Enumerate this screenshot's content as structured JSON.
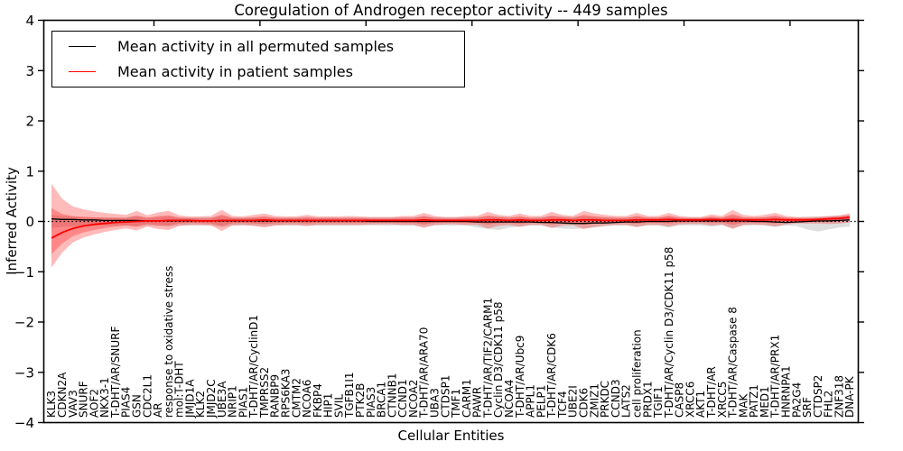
{
  "chart_data": {
    "type": "line",
    "title": "Coregulation of Androgen receptor activity -- 449 samples",
    "xlabel": "Cellular Entities",
    "ylabel": "Inferred Activity",
    "ylim": [
      -4,
      4
    ],
    "yticks": [
      4,
      3,
      2,
      1,
      0,
      -1,
      -2,
      -3,
      -4
    ],
    "grid": false,
    "legend_position": "upper left",
    "colors": {
      "permuted_line": "#000000",
      "patient_line": "#ff0000",
      "permuted_band": "#999999",
      "patient_band": "#ff0000",
      "frame": "#000000"
    },
    "zero_line": {
      "value": 0,
      "style": "dotted",
      "color": "#000000"
    },
    "categories": [
      "KLK3",
      "CDKN2A",
      "VAV3",
      "SNURF",
      "AOF2",
      "NKX3-1",
      "T-DHT/AR/SNURF",
      "PIAS4",
      "GSN",
      "CDC2L1",
      "AR",
      "response to oxidative stress",
      "mol:T-DHT",
      "JMJD1A",
      "KLK2",
      "JMJD2C",
      "UBE3A",
      "NRIP1",
      "PIAS1",
      "T-DHT/AR/CyclinD1",
      "TMPRSS2",
      "RANBP9",
      "RPS6KA3",
      "CMTM2",
      "NCOA6",
      "FKBP4",
      "HIP1",
      "SVIL",
      "TGFB1I1",
      "PTK2B",
      "PIAS3",
      "BRCA1",
      "CTNNB1",
      "CCND1",
      "NCOA2",
      "T-DHT/AR/ARA70",
      "UBA3",
      "CTDSP1",
      "TMF1",
      "CARM1",
      "PAWR",
      "T-DHT/AR/TIF2/CARM1",
      "Cyclin D3/CDK11 p58",
      "NCOA4",
      "T-DHT/AR/Ubc9",
      "APPL1",
      "PELP1",
      "T-DHT/AR/CDK6",
      "TCF4",
      "UBE2I",
      "CDK6",
      "ZMIZ1",
      "PRKDC",
      "CCND3",
      "LATS2",
      "cell proliferation",
      "PRDX1",
      "TGIF1",
      "T-DHT/AR/Cyclin D3/CDK11 p58",
      "CASP8",
      "XRCC6",
      "AKT1",
      "T-DHT/AR",
      "XRCC5",
      "T-DHT/AR/Caspase 8",
      "MAK",
      "PATZ1",
      "MED1",
      "T-DHT/AR/PRX1",
      "HNRNPA1",
      "PA2G4",
      "SRF",
      "CTDSP2",
      "FHL2",
      "ZNF318",
      "DNA-PK"
    ],
    "series": [
      {
        "name": "Mean activity in all permuted samples",
        "color": "#000000",
        "values": [
          0.05,
          0.04,
          0.04,
          0.03,
          0.03,
          0.02,
          0.02,
          0.02,
          0.02,
          0.01,
          0.01,
          0.01,
          0.01,
          0.01,
          0.01,
          0.01,
          0.01,
          0.01,
          0.01,
          0.01,
          0.01,
          0.01,
          0.01,
          0.01,
          0.01,
          0.01,
          0.01,
          0.01,
          0.01,
          0.01,
          0.0,
          0.0,
          0.0,
          0.0,
          0.0,
          0.0,
          0.0,
          0.0,
          0.0,
          0.0,
          -0.01,
          -0.01,
          -0.01,
          -0.01,
          -0.01,
          -0.01,
          -0.02,
          -0.02,
          -0.03,
          -0.04,
          -0.04,
          -0.03,
          -0.03,
          -0.02,
          -0.01,
          -0.01,
          0.0,
          0.0,
          0.0,
          0.01,
          0.01,
          0.01,
          0.01,
          0.01,
          0.01,
          0.01,
          0.0,
          0.0,
          -0.01,
          -0.02,
          -0.01,
          0.0,
          0.01,
          0.01,
          0.02,
          0.03
        ]
      },
      {
        "name": "Mean activity in patient samples",
        "color": "#ff0000",
        "values": [
          -0.33,
          -0.22,
          -0.14,
          -0.09,
          -0.06,
          -0.04,
          -0.02,
          -0.01,
          0.0,
          0.01,
          0.01,
          0.02,
          0.02,
          0.02,
          0.01,
          0.01,
          0.02,
          0.02,
          0.02,
          0.02,
          0.03,
          0.02,
          0.02,
          0.02,
          0.02,
          0.02,
          0.02,
          0.02,
          0.02,
          0.02,
          0.02,
          0.02,
          0.02,
          0.02,
          0.02,
          0.03,
          0.02,
          0.02,
          0.02,
          0.02,
          0.02,
          0.03,
          0.03,
          0.02,
          0.03,
          0.02,
          0.02,
          0.03,
          0.03,
          0.02,
          0.03,
          0.03,
          0.02,
          0.02,
          0.02,
          0.03,
          0.03,
          0.03,
          0.04,
          0.03,
          0.03,
          0.03,
          0.04,
          0.03,
          0.04,
          0.03,
          0.03,
          0.03,
          0.04,
          0.03,
          0.03,
          0.03,
          0.04,
          0.05,
          0.06,
          0.08
        ]
      }
    ],
    "bands": [
      {
        "name": "std band of permuted samples",
        "color": "#999999",
        "opacity": 0.32,
        "hi": [
          0.13,
          0.11,
          0.1,
          0.09,
          0.08,
          0.08,
          0.08,
          0.08,
          0.11,
          0.08,
          0.09,
          0.1,
          0.08,
          0.08,
          0.08,
          0.08,
          0.11,
          0.08,
          0.08,
          0.08,
          0.09,
          0.08,
          0.08,
          0.08,
          0.09,
          0.08,
          0.08,
          0.08,
          0.08,
          0.08,
          0.08,
          0.08,
          0.08,
          0.08,
          0.08,
          0.1,
          0.08,
          0.08,
          0.08,
          0.08,
          0.09,
          0.1,
          0.1,
          0.09,
          0.09,
          0.08,
          0.08,
          0.1,
          0.1,
          0.09,
          0.1,
          0.09,
          0.09,
          0.08,
          0.08,
          0.1,
          0.08,
          0.08,
          0.1,
          0.08,
          0.08,
          0.08,
          0.09,
          0.08,
          0.11,
          0.08,
          0.08,
          0.08,
          0.1,
          0.08,
          0.08,
          0.09,
          0.1,
          0.1,
          0.11,
          0.13
        ],
        "lo": [
          -0.13,
          -0.11,
          -0.1,
          -0.09,
          -0.08,
          -0.08,
          -0.08,
          -0.08,
          -0.11,
          -0.08,
          -0.09,
          -0.1,
          -0.08,
          -0.08,
          -0.08,
          -0.08,
          -0.11,
          -0.08,
          -0.08,
          -0.08,
          -0.09,
          -0.08,
          -0.08,
          -0.08,
          -0.09,
          -0.08,
          -0.08,
          -0.08,
          -0.08,
          -0.08,
          -0.08,
          -0.08,
          -0.08,
          -0.08,
          -0.08,
          -0.1,
          -0.08,
          -0.08,
          -0.08,
          -0.08,
          -0.12,
          -0.15,
          -0.17,
          -0.12,
          -0.1,
          -0.08,
          -0.08,
          -0.12,
          -0.14,
          -0.15,
          -0.14,
          -0.12,
          -0.1,
          -0.08,
          -0.08,
          -0.11,
          -0.08,
          -0.08,
          -0.12,
          -0.08,
          -0.08,
          -0.08,
          -0.1,
          -0.08,
          -0.13,
          -0.08,
          -0.08,
          -0.08,
          -0.11,
          -0.08,
          -0.09,
          -0.16,
          -0.2,
          -0.16,
          -0.12,
          -0.1
        ]
      },
      {
        "name": "std band of patient samples",
        "color": "#ff0000",
        "opacity": 0.27,
        "hi": [
          0.75,
          0.45,
          0.3,
          0.24,
          0.2,
          0.17,
          0.15,
          0.13,
          0.21,
          0.12,
          0.18,
          0.21,
          0.12,
          0.1,
          0.1,
          0.11,
          0.23,
          0.11,
          0.1,
          0.13,
          0.16,
          0.11,
          0.1,
          0.1,
          0.13,
          0.1,
          0.1,
          0.1,
          0.11,
          0.1,
          0.09,
          0.09,
          0.09,
          0.11,
          0.11,
          0.17,
          0.11,
          0.09,
          0.09,
          0.11,
          0.11,
          0.19,
          0.13,
          0.11,
          0.16,
          0.11,
          0.11,
          0.19,
          0.13,
          0.11,
          0.21,
          0.16,
          0.13,
          0.11,
          0.11,
          0.17,
          0.11,
          0.11,
          0.17,
          0.11,
          0.09,
          0.09,
          0.14,
          0.11,
          0.23,
          0.13,
          0.11,
          0.13,
          0.17,
          0.11,
          0.09,
          0.09,
          0.09,
          0.11,
          0.12,
          0.16
        ],
        "lo": [
          -0.92,
          -0.62,
          -0.42,
          -0.32,
          -0.26,
          -0.21,
          -0.17,
          -0.14,
          -0.18,
          -0.1,
          -0.15,
          -0.17,
          -0.09,
          -0.07,
          -0.07,
          -0.08,
          -0.19,
          -0.08,
          -0.07,
          -0.09,
          -0.12,
          -0.08,
          -0.07,
          -0.07,
          -0.09,
          -0.07,
          -0.07,
          -0.07,
          -0.07,
          -0.07,
          -0.06,
          -0.06,
          -0.06,
          -0.07,
          -0.07,
          -0.13,
          -0.07,
          -0.06,
          -0.06,
          -0.07,
          -0.07,
          -0.14,
          -0.09,
          -0.07,
          -0.11,
          -0.07,
          -0.07,
          -0.13,
          -0.08,
          -0.07,
          -0.15,
          -0.11,
          -0.08,
          -0.07,
          -0.07,
          -0.11,
          -0.07,
          -0.07,
          -0.1,
          -0.06,
          -0.05,
          -0.05,
          -0.08,
          -0.06,
          -0.15,
          -0.07,
          -0.06,
          -0.07,
          -0.1,
          -0.06,
          -0.04,
          -0.04,
          -0.04,
          -0.05,
          -0.04,
          -0.02
        ]
      }
    ]
  }
}
